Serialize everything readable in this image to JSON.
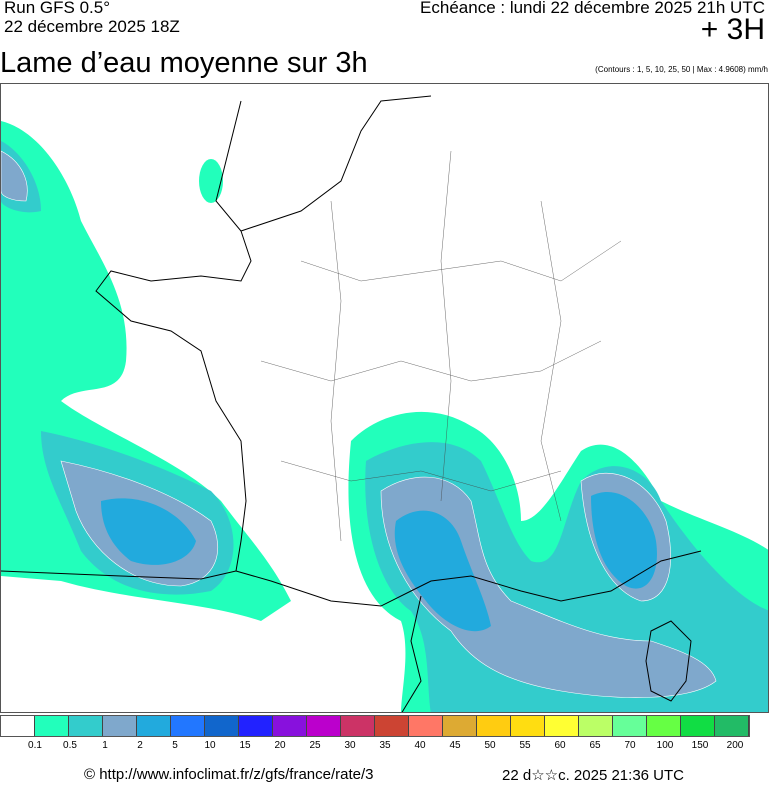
{
  "header": {
    "run": "Run GFS 0.5°",
    "run_date": "22 décembre 2025 18Z",
    "echeance": "Echéance : lundi 22 décembre 2025 21h UTC",
    "lead": "+ 3H"
  },
  "title": "Lame d’eau moyenne sur 3h",
  "contours_note": "(Contours : 1, 5, 10, 25, 50 | Max : 4.9608) mm/h",
  "legend": {
    "colors": [
      "#ffffff",
      "#22ffbb",
      "#33cccc",
      "#7fa8cc",
      "#22aadd",
      "#2277ff",
      "#1166cc",
      "#2222ff",
      "#8811dd",
      "#bb00cc",
      "#cc3366",
      "#cc4433",
      "#ff7766",
      "#ddaa33",
      "#ffcc11",
      "#ffdd11",
      "#ffff33",
      "#bbff66",
      "#66ff99",
      "#66ff44",
      "#11dd44",
      "#22bb66"
    ],
    "labels": [
      "0.1",
      "0.5",
      "1",
      "2",
      "5",
      "10",
      "15",
      "20",
      "25",
      "30",
      "35",
      "40",
      "45",
      "50",
      "55",
      "60",
      "65",
      "70",
      "100",
      "150",
      "200"
    ]
  },
  "footer": {
    "source": "© http://www.infoclimat.fr/z/gfs/france/rate/3",
    "generated": "22 d☆☆c. 2025 21:36 UTC"
  }
}
